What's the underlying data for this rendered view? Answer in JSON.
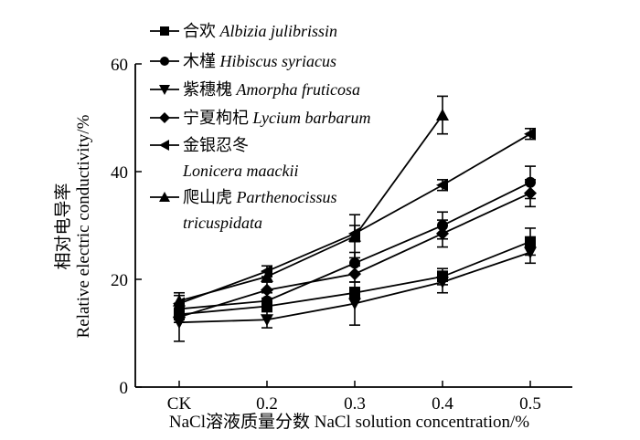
{
  "chart_data": {
    "type": "line",
    "title": "",
    "xlabel": "NaCl溶液质量分数 NaCl solution concentration/%",
    "ylabel_cn": "相对电导率",
    "ylabel_en": "Relative electric conductivity/%",
    "categories": [
      "CK",
      "0.2",
      "0.3",
      "0.4",
      "0.5"
    ],
    "ylim": [
      0,
      60
    ],
    "yticks": [
      0,
      20,
      40,
      60
    ],
    "legend_position": "top-left",
    "series": [
      {
        "name_cn": "合欢",
        "name_latin": "Albizia julibrissin",
        "latin_line2": "",
        "marker": "square",
        "values": [
          13.5,
          15.0,
          17.5,
          20.5,
          27.0
        ],
        "errors": [
          1.0,
          1.0,
          1.0,
          1.5,
          2.5
        ]
      },
      {
        "name_cn": "木槿",
        "name_latin": "Hibiscus syriacus",
        "latin_line2": "",
        "marker": "circle",
        "values": [
          14.5,
          16.0,
          23.0,
          30.0,
          38.0
        ],
        "errors": [
          1.0,
          1.5,
          2.0,
          2.5,
          3.0
        ]
      },
      {
        "name_cn": "紫穗槐",
        "name_latin": "Amorpha fruticosa",
        "latin_line2": "",
        "marker": "triangle-down",
        "values": [
          12.0,
          12.5,
          15.5,
          19.5,
          25.0
        ],
        "errors": [
          3.5,
          1.5,
          4.0,
          2.0,
          2.0
        ]
      },
      {
        "name_cn": "宁夏枸杞",
        "name_latin": "Lycium barbarum",
        "latin_line2": "",
        "marker": "diamond",
        "values": [
          13.0,
          18.0,
          21.0,
          28.5,
          36.0
        ],
        "errors": [
          1.0,
          1.5,
          1.5,
          2.5,
          2.5
        ]
      },
      {
        "name_cn": "金银忍冬",
        "name_latin": "",
        "latin_line2": "Lonicera maackii",
        "marker": "triangle-left",
        "values": [
          15.5,
          21.5,
          28.5,
          37.5,
          47.0
        ],
        "errors": [
          1.5,
          1.0,
          1.5,
          1.0,
          1.0
        ]
      },
      {
        "name_cn": "爬山虎",
        "name_latin": "Parthenocissus",
        "latin_line2": "tricuspidata",
        "marker": "triangle-up",
        "values": [
          16.0,
          20.5,
          28.0,
          50.5,
          null
        ],
        "errors": [
          1.5,
          1.0,
          4.0,
          3.5,
          null
        ]
      }
    ]
  }
}
